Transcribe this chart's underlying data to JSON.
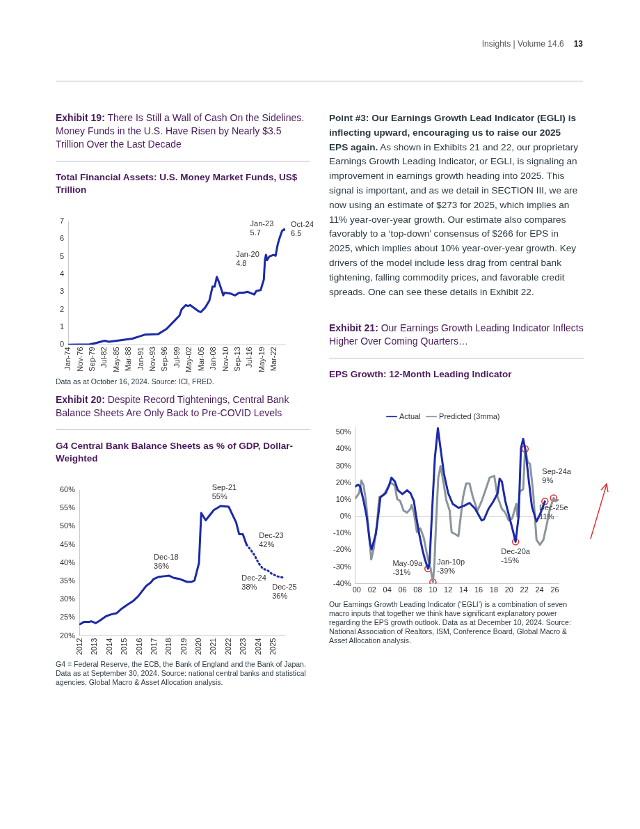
{
  "chart_data": [
    {
      "type": "line",
      "title": "Exhibit 19: There Is Still a Wall of Cash On the Sidelines. Money Funds in the U.S. Have Risen by Nearly $3.5 Trillion Over the Last Decade",
      "subtitle": "Total Financial Assets: U.S. Money Market Funds, US$ Trillion",
      "x": [
        "1974-01",
        "1979-01",
        "1980-07",
        "1982-07",
        "1983-07",
        "1986-01",
        "1989-01",
        "1991-01",
        "1992-01",
        "1995-01",
        "1997-01",
        "1999-01",
        "2000-01",
        "2000-07",
        "2001-07",
        "2002-01",
        "2002-07",
        "2004-07",
        "2005-01",
        "2006-01",
        "2007-01",
        "2007-10",
        "2008-04",
        "2008-10",
        "2009-04",
        "2010-01",
        "2010-04",
        "2010-07",
        "2012-01",
        "2013-01",
        "2014-01",
        "2015-01",
        "2016-01",
        "2017-07",
        "2018-01",
        "2019-01",
        "2019-10",
        "2020-01",
        "2020-04",
        "2020-07",
        "2021-01",
        "2022-01",
        "2022-07",
        "2023-01",
        "2023-07",
        "2024-01",
        "2024-07",
        "2024-10"
      ],
      "series": [
        {
          "color": "#1c2aa8",
          "values": [
            0,
            0.02,
            0.1,
            0.23,
            0.17,
            0.25,
            0.35,
            0.5,
            0.58,
            0.6,
            0.9,
            1.4,
            1.65,
            2.0,
            2.25,
            2.2,
            2.25,
            1.9,
            1.85,
            2.1,
            2.5,
            3.3,
            3.3,
            3.85,
            3.55,
            3.0,
            2.8,
            2.95,
            2.9,
            2.8,
            2.95,
            2.95,
            3.0,
            2.85,
            3.05,
            3.1,
            3.7,
            4.8,
            5.1,
            4.8,
            5.0,
            5.1,
            5.05,
            5.7,
            6.1,
            6.45,
            6.55,
            6.5
          ]
        }
      ],
      "xlim": [
        "1974-01",
        "2024-10"
      ],
      "xticks": [
        {
          "value": "1974-01",
          "label": "Jan-74"
        },
        {
          "value": "1976-11",
          "label": "Nov-76"
        },
        {
          "value": "1979-09",
          "label": "Sep-79"
        },
        {
          "value": "1982-07",
          "label": "Jul-82"
        },
        {
          "value": "1985-05",
          "label": "May-85"
        },
        {
          "value": "1988-03",
          "label": "Mar-88"
        },
        {
          "value": "1991-01",
          "label": "Jan-91"
        },
        {
          "value": "1993-11",
          "label": "Nov-93"
        },
        {
          "value": "1996-09",
          "label": "Sep-96"
        },
        {
          "value": "1999-07",
          "label": "Jul-99"
        },
        {
          "value": "2002-05",
          "label": "May-02"
        },
        {
          "value": "2005-03",
          "label": "Mar-05"
        },
        {
          "value": "2008-01",
          "label": "Jan-08"
        },
        {
          "value": "2010-11",
          "label": "Nov-10"
        },
        {
          "value": "2013-09",
          "label": "Sep-13"
        },
        {
          "value": "2016-07",
          "label": "Jul-16"
        },
        {
          "value": "2019-05",
          "label": "May-19"
        },
        {
          "value": "2022-03",
          "label": "Mar-22"
        }
      ],
      "ylim": [
        0,
        7
      ],
      "yticks": [
        0,
        1,
        2,
        3,
        4,
        5,
        6,
        7
      ],
      "grid": false,
      "legend": false,
      "annotations": [
        {
          "text": "Jan-20\n4.8",
          "x": "2020-01",
          "y": 4.8
        },
        {
          "text": "Jan-23\n5.7",
          "x": "2023-01",
          "y": 5.7
        },
        {
          "text": "Oct-24\n6.5",
          "x": "2024-10",
          "y": 6.5
        },
        "Data as at October 16, 2024. Source: ICI, FRED."
      ]
    },
    {
      "type": "line",
      "title": "Exhibit 20: Despite Record Tightenings, Central Bank Balance Sheets Are Only Back to Pre-COVID Levels",
      "subtitle": "G4 Central Bank Balance Sheets as % of GDP, Dollar-Weighted",
      "series": [
        {
          "color": "#1c2aa8",
          "line_style": "solid",
          "x": [
            2012.0,
            2012.25,
            2012.6,
            2012.75,
            2013.05,
            2013.3,
            2013.75,
            2014.1,
            2014.45,
            2014.75,
            2015.2,
            2015.55,
            2015.9,
            2016.2,
            2016.45,
            2016.75,
            2016.95,
            2017.3,
            2017.75,
            2018.0,
            2018.3,
            2018.7,
            2019.2,
            2019.5,
            2019.7,
            2020.0,
            2020.15,
            2020.45,
            2021.0,
            2021.45,
            2022.0,
            2022.5,
            2022.7,
            2022.95,
            2023.2
          ],
          "values": [
            23.2,
            23.8,
            23.8,
            24,
            23.5,
            24.1,
            25.4,
            25.9,
            26.2,
            27.3,
            28.6,
            29.5,
            30.8,
            32.4,
            33.7,
            34.6,
            35.6,
            36.2,
            36.4,
            36.5,
            35.9,
            35.6,
            34.8,
            34.8,
            35.2,
            40,
            53.7,
            51.7,
            54.5,
            55.6,
            55.4,
            51.1,
            47.9,
            47.9,
            45
          ]
        },
        {
          "color": "#1c2aa8",
          "line_style": "dotted",
          "x": [
            2023.2,
            2023.5,
            2023.75,
            2024.0,
            2024.3,
            2024.6,
            2024.9,
            2025.3,
            2025.75
          ],
          "values": [
            45,
            43.5,
            42,
            40,
            38.4,
            38,
            37,
            36.3,
            35.9
          ]
        }
      ],
      "xlim": [
        2011.95,
        2025.8
      ],
      "xticks": [
        2012,
        2013,
        2014,
        2015,
        2016,
        2017,
        2018,
        2019,
        2020,
        2021,
        2022,
        2023,
        2024,
        2025
      ],
      "ylim": [
        20,
        60
      ],
      "yticks": [
        {
          "value": 20,
          "label": "20%"
        },
        {
          "value": 25,
          "label": "25%"
        },
        {
          "value": 30,
          "label": "30%"
        },
        {
          "value": 35,
          "label": "35%"
        },
        {
          "value": 40,
          "label": "40%"
        },
        {
          "value": 45,
          "label": "45%"
        },
        {
          "value": 50,
          "label": "50%"
        },
        {
          "value": 55,
          "label": "55%"
        },
        {
          "value": 60,
          "label": "60%"
        }
      ],
      "grid": false,
      "legend": false,
      "annotations": [
        {
          "text": "Dec-18\n36%",
          "x": 2018.9,
          "y": 36
        },
        {
          "text": "Sep-21\n55%",
          "x": 2021.7,
          "y": 55
        },
        {
          "text": "Dec-23\n42%",
          "x": 2023.75,
          "y": 42
        },
        {
          "text": "Dec-24\n38%",
          "x": 2024.9,
          "y": 38
        },
        {
          "text": "Dec-25\n36%",
          "x": 2025.75,
          "y": 36
        },
        "G4 = Federal Reserve, the ECB, the Bank of England and the Bank of Japan. Data as at September 30, 2024. Source: national central banks and statistical agencies, Global Macro & Asset Allocation analysis."
      ]
    },
    {
      "type": "other",
      "annotations": [
        "Insights | Volume 14.6",
        "13",
        "Point #3: Our Earnings Growth Lead Indicator (EGLI) is inflecting upward, encouraging us to raise our 2025 EPS again.",
        "As shown in Exhibits 21 and 22, our proprietary Earnings Growth Leading Indicator, or EGLI, is signaling an improvement in earnings growth heading into 2025. This signal is important, and as we detail in SECTION III, we are now using an estimate of $273 for 2025, which implies an 11% year-over-year growth. Our estimate also compares favorably to a ‘top-down’ consensus of $266 for EPS in 2025, which implies about 10% year-over-year growth. Key drivers of the model include less drag from central bank tightening, falling commodity prices, and favorable credit spreads. One can see these details in Exhibit 22."
      ]
    },
    {
      "type": "line",
      "title": "Exhibit 21: Our Earnings Growth Leading Indicator Inflects Higher Over Coming Quarters…",
      "subtitle": "EPS Growth: 12-Month Leading Indicator",
      "series": [
        {
          "name": "Actual",
          "color": "#1c2aa8",
          "x": [
            1999.85,
            2000.15,
            2000.45,
            2000.9,
            2001.3,
            2001.75,
            2001.95,
            2002.5,
            2002.9,
            2003.1,
            2003.8,
            2004.25,
            2004.55,
            2005.0,
            2005.4,
            2006.0,
            2006.6,
            2007.05,
            2007.5,
            2007.8,
            2008.2,
            2008.65,
            2008.95,
            2009.35,
            2009.55,
            2009.8,
            2010.25,
            2010.65,
            2011.0,
            2011.45,
            2012.0,
            2012.6,
            2013.35,
            2014.1,
            2014.8,
            2015.55,
            2016.4,
            2016.7,
            2017.3,
            2017.9,
            2018.5,
            2018.75,
            2019.05,
            2019.5,
            2019.95,
            2020.55,
            2020.85,
            2021.25,
            2021.55,
            2021.85,
            2022.15,
            2022.6,
            2023.0,
            2023.6,
            2024.05,
            2024.7
          ],
          "values": [
            17.9,
            19,
            17.9,
            9.2,
            0,
            -16.2,
            -19.5,
            -10.4,
            3.5,
            11.5,
            13.9,
            18.5,
            23.1,
            20.8,
            15.6,
            13.3,
            15.6,
            13.9,
            9.2,
            0,
            -10.4,
            -20.3,
            -25.5,
            -31,
            -27.8,
            -4.6,
            34.6,
            52.5,
            40.4,
            25.4,
            13.9,
            7.5,
            5.2,
            6.4,
            8.1,
            4.6,
            -2.3,
            -1.7,
            4.6,
            8.7,
            13.9,
            22.5,
            20.8,
            9.2,
            1.2,
            -9.3,
            -15,
            0,
            40.4,
            46.2,
            39.3,
            20.8,
            5.8,
            -2.9,
            1.2,
            9
          ]
        },
        {
          "name": "Predicted (3mma)",
          "color": "#8c959c",
          "x": [
            1999.85,
            2000.3,
            2000.6,
            2000.9,
            2001.2,
            2001.6,
            2001.9,
            2002.2,
            2002.65,
            2002.95,
            2003.5,
            2003.95,
            2004.4,
            2005.0,
            2005.3,
            2005.7,
            2006.15,
            2006.6,
            2007.05,
            2007.2,
            2007.5,
            2007.9,
            2008.35,
            2008.8,
            2009.25,
            2009.7,
            2010.0,
            2010.2,
            2010.4,
            2010.7,
            2011.0,
            2011.45,
            2011.75,
            2012.2,
            2012.45,
            2012.9,
            2013.35,
            2013.65,
            2013.95,
            2014.35,
            2014.8,
            2015.25,
            2015.85,
            2016.4,
            2016.85,
            2017.45,
            2018.05,
            2018.5,
            2019.05,
            2019.5,
            2019.95,
            2020.4,
            2020.95,
            2021.1,
            2021.4,
            2021.85,
            2022.1,
            2022.45,
            2022.75,
            2023.15,
            2023.6,
            2024.05,
            2024.5,
            2024.95,
            2025.35,
            2025.85,
            2026.1,
            2026.4
          ],
          "values": [
            11,
            13.9,
            21.4,
            18.5,
            9.2,
            -10.4,
            -25.5,
            -19.7,
            -4.6,
            11.5,
            12.7,
            16.2,
            20.2,
            18.5,
            10.4,
            9.2,
            3.5,
            2.3,
            4.6,
            6.9,
            2.3,
            -9.3,
            -7,
            -12.7,
            -23.2,
            -31.3,
            -39,
            -27.8,
            -4.6,
            23.1,
            30,
            18.5,
            9.8,
            3.5,
            -9.3,
            -10.4,
            -11.6,
            0,
            11.5,
            19.6,
            19.6,
            11.5,
            3.5,
            9.2,
            15,
            23.1,
            24.2,
            11.5,
            4.6,
            2.3,
            -2.3,
            -1.2,
            7.5,
            0,
            15,
            16.2,
            40.2,
            32.3,
            31.2,
            15,
            -13.9,
            -16.8,
            -13.9,
            -4.6,
            4.6,
            11,
            9.2,
            9.8
          ]
        },
        {
          "type": "scatter",
          "marker": "circle",
          "color": "#e8282b",
          "x": [
            2009.35,
            2010.0,
            2020.85,
            2022.1,
            2024.7,
            2025.85
          ],
          "values": [
            -31,
            -39,
            -15,
            40.2,
            9,
            11
          ]
        }
      ],
      "xlim": [
        1999.8,
        2026.5
      ],
      "xticks": [
        {
          "value": 2000,
          "label": "00"
        },
        {
          "value": 2002,
          "label": "02"
        },
        {
          "value": 2004,
          "label": "04"
        },
        {
          "value": 2006,
          "label": "06"
        },
        {
          "value": 2008,
          "label": "08"
        },
        {
          "value": 2010,
          "label": "10"
        },
        {
          "value": 2012,
          "label": "12"
        },
        {
          "value": 2014,
          "label": "14"
        },
        {
          "value": 2016,
          "label": "16"
        },
        {
          "value": 2018,
          "label": "18"
        },
        {
          "value": 2020,
          "label": "20"
        },
        {
          "value": 2022,
          "label": "22"
        },
        {
          "value": 2024,
          "label": "24"
        },
        {
          "value": 2026,
          "label": "26"
        }
      ],
      "ylim": [
        -40,
        53
      ],
      "yticks": [
        {
          "value": -40,
          "label": "-40%"
        },
        {
          "value": -30,
          "label": "-30%"
        },
        {
          "value": -20,
          "label": "-20%"
        },
        {
          "value": -10,
          "label": "-10%"
        },
        {
          "value": 0,
          "label": "0%"
        },
        {
          "value": 10,
          "label": "10%"
        },
        {
          "value": 20,
          "label": "20%"
        },
        {
          "value": 30,
          "label": "30%"
        },
        {
          "value": 40,
          "label": "40%"
        },
        {
          "value": 50,
          "label": "50%"
        }
      ],
      "grid": false,
      "legend": "top",
      "ref_lines": [
        {
          "axis": "y",
          "value": 0,
          "color": "#c8c8c8"
        }
      ],
      "annotations": [
        {
          "text": "May-09a\n-31%",
          "x": 2009.35,
          "y": -31
        },
        {
          "text": "Jan-10p\n-39%",
          "x": 2010.0,
          "y": -39
        },
        {
          "text": "Dec-20a\n-15%",
          "x": 2020.85,
          "y": -15
        },
        {
          "text": "Sep-24a\n9%",
          "x": 2024.7,
          "y": 9
        },
        {
          "text": "Dec-25e\n11%",
          "x": 2025.85,
          "y": 11
        },
        "Our Earnings Growth Leading Indicator (‘EGLI’) is a combination of seven macro inputs that together we think have significant explanatory power regarding the EPS growth outlook. Data as at December 10, 2024. Source: National Association of Realtors, ISM, Conference Board, Global Macro & Asset Allocation analysis."
      ]
    }
  ]
}
